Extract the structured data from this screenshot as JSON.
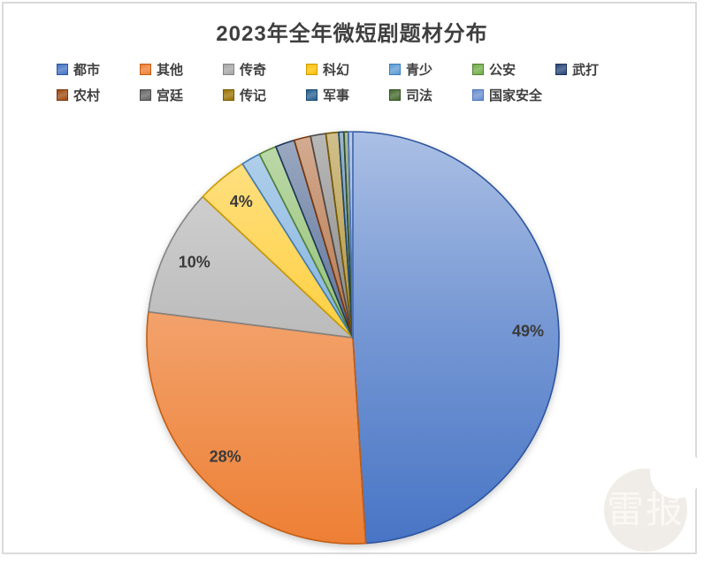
{
  "title": "2023年全年微短剧题材分布",
  "frame": {
    "border_color": "#DADADA",
    "background": "#FFFFFF"
  },
  "watermark": {
    "text": "雷报",
    "circle_color": "#F0EDE8",
    "text_color": "#FAF8F4"
  },
  "chart_data": {
    "type": "pie",
    "title": "2023年全年微短剧题材分布",
    "start_angle_deg": 0,
    "direction": "clockwise",
    "legend_position": "top",
    "legend_rows": [
      7,
      6
    ],
    "data_labels_shown": [
      "49%",
      "28%",
      "10%",
      "4%"
    ],
    "label_text_color": "#3A3A3A",
    "series": [
      {
        "name": "都市",
        "value": 49,
        "label": "49%",
        "color": "#4472C4",
        "stroke": "#2E55A0"
      },
      {
        "name": "其他",
        "value": 28,
        "label": "28%",
        "color": "#ED7D31",
        "stroke": "#C45E11"
      },
      {
        "name": "传奇",
        "value": 10,
        "label": "10%",
        "color": "#A5A5A5",
        "stroke": "#848484"
      },
      {
        "name": "科幻",
        "value": 4,
        "label": "4%",
        "color": "#FFC000",
        "stroke": "#CC9A00"
      },
      {
        "name": "青少",
        "value": 1.5,
        "label": "",
        "color": "#5B9BD5",
        "stroke": "#3E7CB8"
      },
      {
        "name": "公安",
        "value": 1.4,
        "label": "",
        "color": "#70AD47",
        "stroke": "#548235"
      },
      {
        "name": "武打",
        "value": 1.5,
        "label": "",
        "color": "#264478",
        "stroke": "#1D355C"
      },
      {
        "name": "农村",
        "value": 1.3,
        "label": "",
        "color": "#9E480E",
        "stroke": "#7A370B"
      },
      {
        "name": "宫廷",
        "value": 1.2,
        "label": "",
        "color": "#636363",
        "stroke": "#4A4A4A"
      },
      {
        "name": "传记",
        "value": 1.0,
        "label": "",
        "color": "#997300",
        "stroke": "#755800"
      },
      {
        "name": "军事",
        "value": 0.4,
        "label": "",
        "color": "#255E91",
        "stroke": "#1B4770"
      },
      {
        "name": "司法",
        "value": 0.35,
        "label": "",
        "color": "#43682B",
        "stroke": "#324F20"
      },
      {
        "name": "国家安全",
        "value": 0.35,
        "label": "",
        "color": "#698ED0",
        "stroke": "#4E73B8"
      }
    ]
  }
}
